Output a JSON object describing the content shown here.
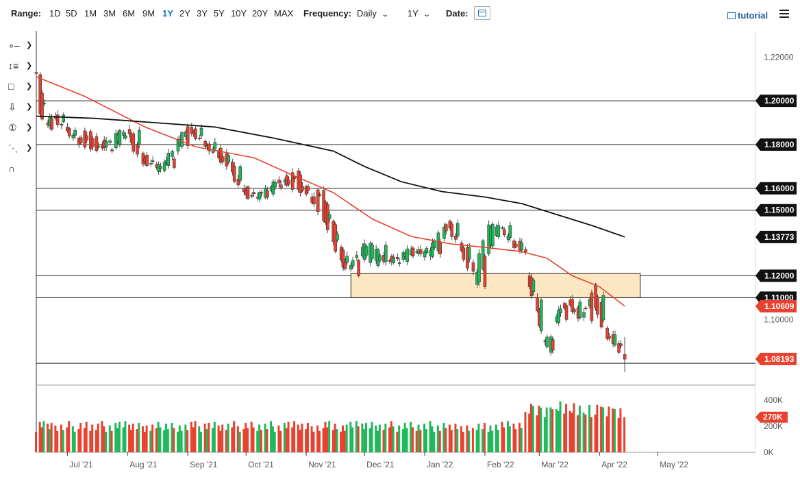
{
  "toolbar": {
    "range_label": "Range:",
    "ranges": [
      "1D",
      "5D",
      "1M",
      "3M",
      "6M",
      "9M",
      "1Y",
      "2Y",
      "3Y",
      "5Y",
      "10Y",
      "20Y",
      "MAX"
    ],
    "active_range": "1Y",
    "frequency_label": "Frequency:",
    "frequency_value": "Daily",
    "period_value": "1Y",
    "date_label": "Date:",
    "tutorial_label": "tutorial"
  },
  "tools": [
    "crosshair-icon",
    "trend-lines-icon",
    "shapes-icon",
    "arrow-down-icon",
    "annotation-number-icon",
    "fibonacci-icon",
    "magnet-icon"
  ],
  "colors": {
    "up": "#1fb85a",
    "down": "#e8412f",
    "ma_short": "#e8412f",
    "ma_long": "#111111",
    "zone_fill": "#fde7c2",
    "zone_stroke": "#222222"
  },
  "chart_data": {
    "type": "candlestick",
    "instrument_price_range": [
      1.07,
      1.232
    ],
    "y_tick_labels": [
      "1.22000",
      "1.10000"
    ],
    "x_tick_labels": [
      "Jul '21",
      "Aug '21",
      "Sep '21",
      "Oct '21",
      "Nov '21",
      "Dec '21",
      "Jan '22",
      "Feb '22",
      "Mar '22",
      "Apr '22",
      "May '22"
    ],
    "horizontal_levels": [
      {
        "value": 1.2,
        "label": "1.20000"
      },
      {
        "value": 1.18,
        "label": "1.18000"
      },
      {
        "value": 1.16,
        "label": "1.16000"
      },
      {
        "value": 1.15,
        "label": "1.15000"
      },
      {
        "value": 1.12,
        "label": "1.12000"
      },
      {
        "value": 1.11,
        "label": "1.11000"
      },
      {
        "value": 1.08,
        "label": ""
      }
    ],
    "zone": {
      "from": "2021-11-24",
      "to": "2022-04-30",
      "low": 1.11,
      "high": 1.121
    },
    "ma_short": {
      "label": "1.10609",
      "last": 1.10609
    },
    "ma_long": {
      "label": "1.13773",
      "last": 1.13773
    },
    "last_price": {
      "label": "1.08193",
      "value": 1.08193
    },
    "volume": {
      "tick_labels": [
        "400K",
        "200K",
        "0K"
      ],
      "last_label": "270K",
      "last_value": 270000,
      "max": 500000
    },
    "candles": [
      [
        "2021-06-15",
        1.213,
        1.2145,
        1.2115,
        1.2125
      ],
      [
        "2021-06-17",
        1.212,
        1.2125,
        1.1985,
        1.199
      ],
      [
        "2021-06-21",
        1.19,
        1.192,
        1.185,
        1.187
      ],
      [
        "2021-06-25",
        1.193,
        1.1955,
        1.1915,
        1.1935
      ],
      [
        "2021-07-01",
        1.188,
        1.19,
        1.186,
        1.1865
      ],
      [
        "2021-07-07",
        1.183,
        1.1855,
        1.1805,
        1.182
      ],
      [
        "2021-07-13",
        1.186,
        1.188,
        1.178,
        1.179
      ],
      [
        "2021-07-19",
        1.18,
        1.181,
        1.1765,
        1.177
      ],
      [
        "2021-07-26",
        1.1785,
        1.185,
        1.178,
        1.184
      ],
      [
        "2021-08-02",
        1.187,
        1.191,
        1.185,
        1.1865
      ],
      [
        "2021-08-09",
        1.176,
        1.179,
        1.1715,
        1.1725
      ],
      [
        "2021-08-16",
        1.171,
        1.1735,
        1.169,
        1.17
      ],
      [
        "2021-08-20",
        1.168,
        1.17,
        1.1665,
        1.1695
      ],
      [
        "2021-08-27",
        1.177,
        1.18,
        1.175,
        1.1795
      ],
      [
        "2021-09-03",
        1.188,
        1.191,
        1.186,
        1.1875
      ],
      [
        "2021-09-10",
        1.1815,
        1.184,
        1.18,
        1.181
      ],
      [
        "2021-09-17",
        1.177,
        1.179,
        1.174,
        1.175
      ],
      [
        "2021-09-24",
        1.172,
        1.174,
        1.169,
        1.17
      ],
      [
        "2021-09-30",
        1.16,
        1.162,
        1.1565,
        1.1575
      ],
      [
        "2021-10-07",
        1.1555,
        1.158,
        1.154,
        1.156
      ],
      [
        "2021-10-14",
        1.159,
        1.161,
        1.157,
        1.16
      ],
      [
        "2021-10-21",
        1.163,
        1.166,
        1.1615,
        1.1645
      ],
      [
        "2021-10-28",
        1.168,
        1.169,
        1.158,
        1.159
      ],
      [
        "2021-11-04",
        1.156,
        1.159,
        1.154,
        1.157
      ],
      [
        "2021-11-10",
        1.159,
        1.16,
        1.147,
        1.148
      ],
      [
        "2021-11-15",
        1.145,
        1.146,
        1.138,
        1.139
      ],
      [
        "2021-11-19",
        1.133,
        1.135,
        1.128,
        1.129
      ],
      [
        "2021-11-24",
        1.123,
        1.125,
        1.1185,
        1.12
      ],
      [
        "2021-11-30",
        1.129,
        1.138,
        1.124,
        1.134
      ],
      [
        "2021-12-07",
        1.127,
        1.1355,
        1.126,
        1.134
      ],
      [
        "2021-12-14",
        1.127,
        1.13,
        1.123,
        1.126
      ],
      [
        "2021-12-21",
        1.1275,
        1.131,
        1.126,
        1.129
      ],
      [
        "2021-12-28",
        1.131,
        1.134,
        1.129,
        1.1325
      ],
      [
        "2022-01-04",
        1.129,
        1.133,
        1.127,
        1.13
      ],
      [
        "2022-01-11",
        1.137,
        1.141,
        1.136,
        1.1405
      ],
      [
        "2022-01-14",
        1.145,
        1.148,
        1.142,
        1.144
      ],
      [
        "2022-01-20",
        1.135,
        1.137,
        1.132,
        1.133
      ],
      [
        "2022-01-26",
        1.126,
        1.128,
        1.12,
        1.122
      ],
      [
        "2022-01-28",
        1.116,
        1.118,
        1.113,
        1.115
      ],
      [
        "2022-02-03",
        1.13,
        1.144,
        1.129,
        1.143
      ],
      [
        "2022-02-10",
        1.142,
        1.149,
        1.14,
        1.143
      ],
      [
        "2022-02-16",
        1.136,
        1.138,
        1.132,
        1.135
      ],
      [
        "2022-02-22",
        1.132,
        1.134,
        1.129,
        1.131
      ],
      [
        "2022-02-24",
        1.12,
        1.123,
        1.111,
        1.118
      ],
      [
        "2022-02-28",
        1.11,
        1.12,
        1.108,
        1.109
      ],
      [
        "2022-03-04",
        1.09,
        1.096,
        1.088,
        1.092
      ],
      [
        "2022-03-07",
        1.085,
        1.088,
        1.0805,
        1.086
      ],
      [
        "2022-03-10",
        1.099,
        1.105,
        1.096,
        1.1
      ],
      [
        "2022-03-17",
        1.109,
        1.112,
        1.105,
        1.108
      ],
      [
        "2022-03-24",
        1.101,
        1.103,
        1.099,
        1.0995
      ],
      [
        "2022-03-30",
        1.116,
        1.118,
        1.11,
        1.111
      ],
      [
        "2022-04-05",
        1.096,
        1.099,
        1.092,
        1.093
      ],
      [
        "2022-04-11",
        1.089,
        1.093,
        1.087,
        1.088
      ],
      [
        "2022-04-14",
        1.084,
        1.092,
        1.076,
        1.0819
      ]
    ],
    "ma_short_points": [
      [
        "2021-06-15",
        1.211
      ],
      [
        "2021-07-10",
        1.202
      ],
      [
        "2021-08-10",
        1.188
      ],
      [
        "2021-09-05",
        1.179
      ],
      [
        "2021-10-05",
        1.174
      ],
      [
        "2021-10-25",
        1.166
      ],
      [
        "2021-11-15",
        1.158
      ],
      [
        "2021-12-05",
        1.146
      ],
      [
        "2021-12-25",
        1.138
      ],
      [
        "2022-01-15",
        1.1345
      ],
      [
        "2022-02-01",
        1.133
      ],
      [
        "2022-02-20",
        1.131
      ],
      [
        "2022-03-05",
        1.128
      ],
      [
        "2022-03-18",
        1.12
      ],
      [
        "2022-04-01",
        1.115
      ],
      [
        "2022-04-14",
        1.10609
      ]
    ],
    "ma_long_points": [
      [
        "2021-06-15",
        1.193
      ],
      [
        "2021-07-15",
        1.192
      ],
      [
        "2021-08-15",
        1.19
      ],
      [
        "2021-09-15",
        1.188
      ],
      [
        "2021-10-15",
        1.183
      ],
      [
        "2021-11-15",
        1.177
      ],
      [
        "2021-12-01",
        1.17
      ],
      [
        "2021-12-20",
        1.163
      ],
      [
        "2022-01-10",
        1.1585
      ],
      [
        "2022-02-01",
        1.156
      ],
      [
        "2022-02-20",
        1.153
      ],
      [
        "2022-03-10",
        1.148
      ],
      [
        "2022-03-28",
        1.143
      ],
      [
        "2022-04-14",
        1.13773
      ]
    ]
  }
}
